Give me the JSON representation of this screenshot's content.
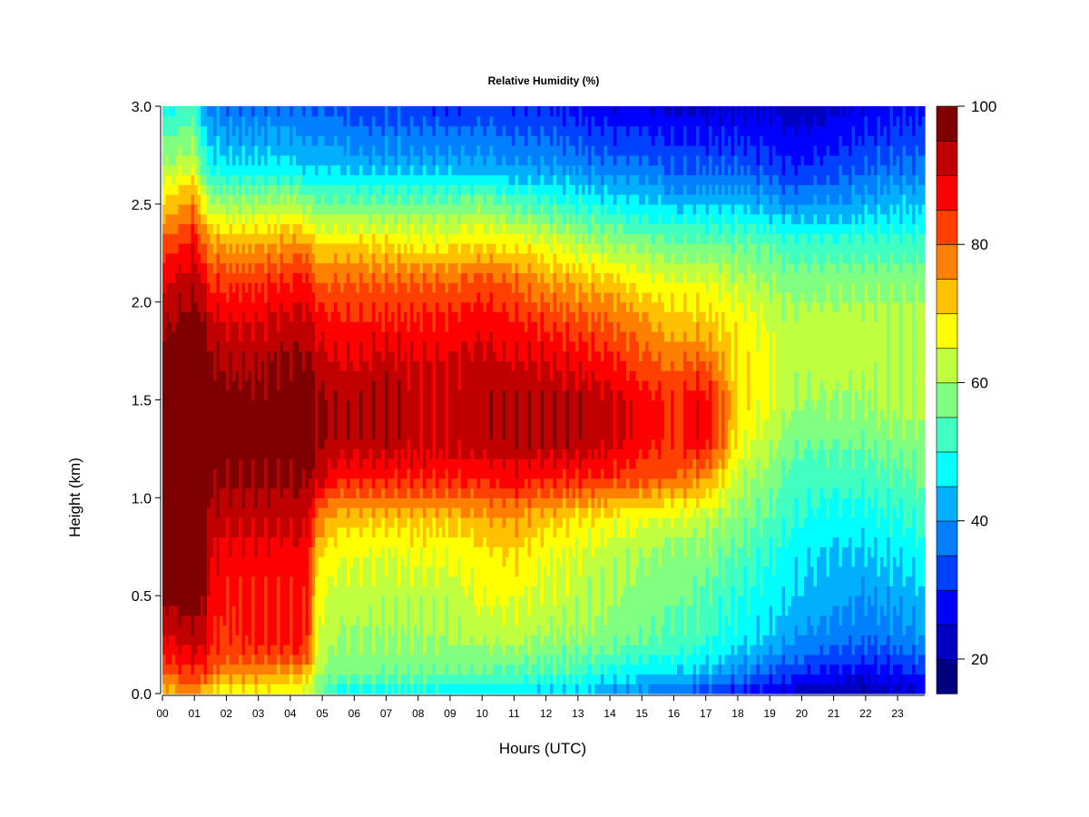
{
  "chart_data": {
    "type": "heatmap",
    "title": "Relative Humidity (%)",
    "xlabel": "Hours (UTC)",
    "ylabel": "Height (km)",
    "xlim": [
      0,
      23.85
    ],
    "ylim": [
      0,
      3.0
    ],
    "x_tick_labels": [
      "00",
      "01",
      "02",
      "03",
      "04",
      "05",
      "06",
      "07",
      "08",
      "09",
      "10",
      "11",
      "12",
      "13",
      "14",
      "15",
      "16",
      "17",
      "18",
      "19",
      "20",
      "21",
      "22",
      "23"
    ],
    "y_ticks": [
      0.0,
      0.5,
      1.0,
      1.5,
      2.0,
      2.5,
      3.0
    ],
    "y_tick_labels": [
      "0.0",
      "0.5",
      "1.0",
      "1.5",
      "2.0",
      "2.5",
      "3.0"
    ],
    "colorbar": {
      "min": 15,
      "max": 100,
      "step": 5,
      "tick_values": [
        20,
        40,
        60,
        80,
        100
      ],
      "tick_labels": [
        "20",
        "40",
        "60",
        "80",
        "100"
      ],
      "colors": [
        "#00007f",
        "#0000c0",
        "#0000ff",
        "#0040ff",
        "#0080ff",
        "#00b0ff",
        "#00ffff",
        "#40ffc0",
        "#80ff80",
        "#c0ff40",
        "#ffff00",
        "#ffc000",
        "#ff8000",
        "#ff4000",
        "#ff0000",
        "#c00000",
        "#7f0000"
      ]
    },
    "height_levels_km": [
      0.0,
      0.1,
      0.2,
      0.3,
      0.5,
      0.7,
      0.9,
      1.1,
      1.3,
      1.5,
      1.7,
      1.9,
      2.1,
      2.3,
      2.5,
      2.7,
      3.0
    ],
    "time_hours": [
      0,
      0.5,
      1,
      1.3,
      1.5,
      2,
      3,
      4,
      4.5,
      4.9,
      5.5,
      6,
      7,
      8,
      9,
      10,
      11,
      12,
      13,
      14,
      15,
      16,
      16.5,
      17,
      17.5,
      18,
      19,
      19.5,
      20,
      21,
      22,
      23,
      23.85
    ],
    "rh_percent": [
      [
        72,
        80,
        86,
        90,
        96,
        97,
        97,
        98,
        98,
        98,
        96,
        94,
        88,
        82,
        70,
        60,
        48
      ],
      [
        74,
        82,
        88,
        92,
        97,
        98,
        98,
        99,
        99,
        99,
        98,
        96,
        92,
        84,
        74,
        62,
        50
      ],
      [
        76,
        84,
        90,
        94,
        98,
        99,
        99,
        99,
        99,
        99,
        99,
        98,
        94,
        88,
        78,
        64,
        52
      ],
      [
        70,
        82,
        88,
        92,
        96,
        98,
        98,
        99,
        99,
        99,
        98,
        96,
        90,
        80,
        66,
        52,
        40
      ],
      [
        68,
        80,
        84,
        86,
        88,
        90,
        94,
        96,
        98,
        98,
        96,
        92,
        84,
        76,
        62,
        48,
        38
      ],
      [
        66,
        76,
        82,
        84,
        86,
        88,
        92,
        96,
        98,
        98,
        94,
        90,
        84,
        74,
        60,
        46,
        36
      ],
      [
        66,
        76,
        84,
        86,
        86,
        88,
        92,
        96,
        98,
        97,
        94,
        90,
        84,
        74,
        60,
        46,
        36
      ],
      [
        66,
        74,
        84,
        86,
        86,
        88,
        92,
        96,
        98,
        98,
        96,
        92,
        86,
        76,
        62,
        46,
        36
      ],
      [
        64,
        72,
        84,
        86,
        86,
        88,
        92,
        96,
        98,
        98,
        96,
        92,
        86,
        76,
        58,
        44,
        34
      ],
      [
        54,
        60,
        62,
        64,
        66,
        70,
        78,
        92,
        96,
        96,
        92,
        88,
        80,
        70,
        56,
        44,
        34
      ],
      [
        48,
        56,
        58,
        60,
        62,
        66,
        72,
        86,
        94,
        94,
        90,
        86,
        80,
        70,
        56,
        44,
        34
      ],
      [
        48,
        56,
        58,
        60,
        62,
        66,
        72,
        86,
        93,
        93,
        90,
        86,
        80,
        70,
        56,
        42,
        32
      ],
      [
        48,
        56,
        58,
        60,
        62,
        64,
        72,
        86,
        94,
        95,
        92,
        86,
        80,
        70,
        56,
        42,
        32
      ],
      [
        48,
        56,
        58,
        60,
        62,
        66,
        72,
        86,
        92,
        92,
        90,
        86,
        80,
        68,
        56,
        42,
        32
      ],
      [
        46,
        54,
        58,
        60,
        62,
        66,
        72,
        86,
        92,
        92,
        90,
        86,
        80,
        68,
        56,
        42,
        30
      ],
      [
        46,
        54,
        58,
        62,
        66,
        68,
        74,
        86,
        94,
        94,
        92,
        88,
        82,
        70,
        58,
        42,
        32
      ],
      [
        46,
        54,
        58,
        62,
        66,
        70,
        76,
        88,
        94,
        94,
        90,
        86,
        80,
        68,
        54,
        40,
        30
      ],
      [
        44,
        52,
        56,
        60,
        64,
        66,
        72,
        86,
        94,
        94,
        90,
        84,
        76,
        66,
        52,
        40,
        30
      ],
      [
        44,
        52,
        56,
        60,
        62,
        64,
        70,
        86,
        94,
        94,
        88,
        82,
        74,
        62,
        50,
        38,
        28
      ],
      [
        40,
        48,
        54,
        58,
        60,
        62,
        68,
        84,
        92,
        92,
        86,
        80,
        72,
        60,
        48,
        36,
        26
      ],
      [
        38,
        46,
        52,
        56,
        58,
        60,
        66,
        82,
        88,
        88,
        82,
        76,
        68,
        58,
        46,
        36,
        26
      ],
      [
        34,
        44,
        50,
        54,
        56,
        58,
        64,
        80,
        84,
        84,
        78,
        72,
        66,
        56,
        44,
        34,
        24
      ],
      [
        34,
        44,
        50,
        54,
        56,
        58,
        64,
        78,
        88,
        88,
        80,
        72,
        66,
        56,
        44,
        34,
        24
      ],
      [
        32,
        42,
        48,
        52,
        54,
        58,
        62,
        76,
        88,
        88,
        80,
        72,
        66,
        56,
        44,
        34,
        24
      ],
      [
        30,
        40,
        46,
        50,
        52,
        56,
        60,
        70,
        80,
        80,
        74,
        70,
        64,
        56,
        44,
        34,
        24
      ],
      [
        28,
        38,
        44,
        48,
        50,
        54,
        58,
        62,
        68,
        70,
        70,
        68,
        62,
        56,
        44,
        34,
        24
      ],
      [
        26,
        34,
        40,
        44,
        48,
        50,
        54,
        58,
        62,
        66,
        66,
        64,
        60,
        54,
        42,
        32,
        24
      ],
      [
        24,
        32,
        38,
        42,
        46,
        48,
        52,
        54,
        58,
        62,
        62,
        62,
        58,
        52,
        40,
        30,
        22
      ],
      [
        22,
        30,
        36,
        40,
        44,
        46,
        50,
        52,
        56,
        60,
        62,
        62,
        58,
        52,
        40,
        30,
        22
      ],
      [
        20,
        28,
        34,
        38,
        42,
        44,
        48,
        52,
        56,
        60,
        62,
        62,
        58,
        52,
        40,
        32,
        24
      ],
      [
        20,
        26,
        32,
        36,
        40,
        44,
        48,
        52,
        56,
        60,
        62,
        62,
        58,
        52,
        42,
        34,
        26
      ],
      [
        22,
        28,
        34,
        38,
        42,
        46,
        50,
        54,
        58,
        62,
        62,
        62,
        58,
        52,
        44,
        36,
        28
      ],
      [
        24,
        30,
        36,
        40,
        44,
        48,
        52,
        56,
        58,
        62,
        62,
        62,
        58,
        52,
        44,
        36,
        28
      ]
    ]
  }
}
